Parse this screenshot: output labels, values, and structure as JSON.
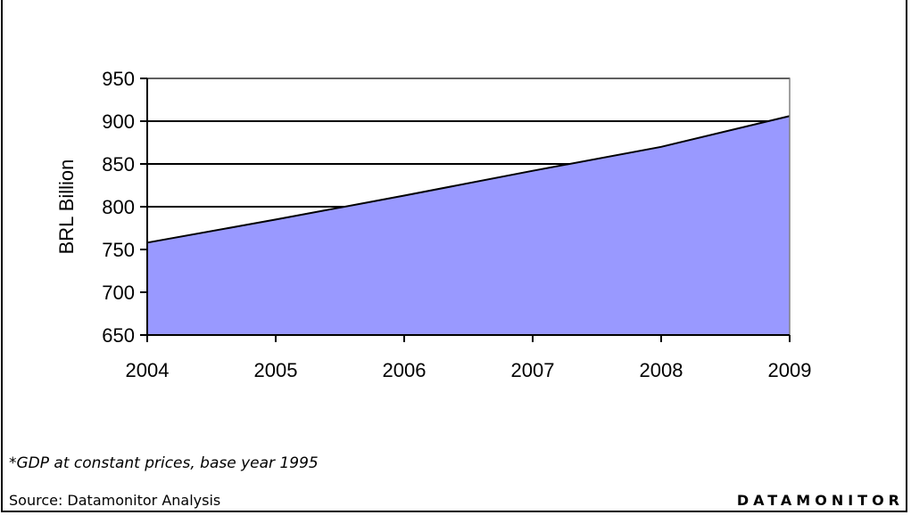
{
  "chart_data": {
    "type": "area",
    "x": [
      "2004",
      "2005",
      "2006",
      "2007",
      "2008",
      "2009"
    ],
    "values": [
      758,
      785,
      813,
      842,
      870,
      906
    ],
    "ylabel": "BRL Billion",
    "xlabel": "",
    "ylim": [
      650,
      950
    ],
    "yticks": [
      650,
      700,
      750,
      800,
      850,
      900,
      950
    ],
    "grid": true,
    "fill_color": "#9999ff"
  },
  "footnote": "*GDP at constant prices, base year 1995",
  "source": "Source: Datamonitor Analysis",
  "brand": "DATAMONITOR"
}
